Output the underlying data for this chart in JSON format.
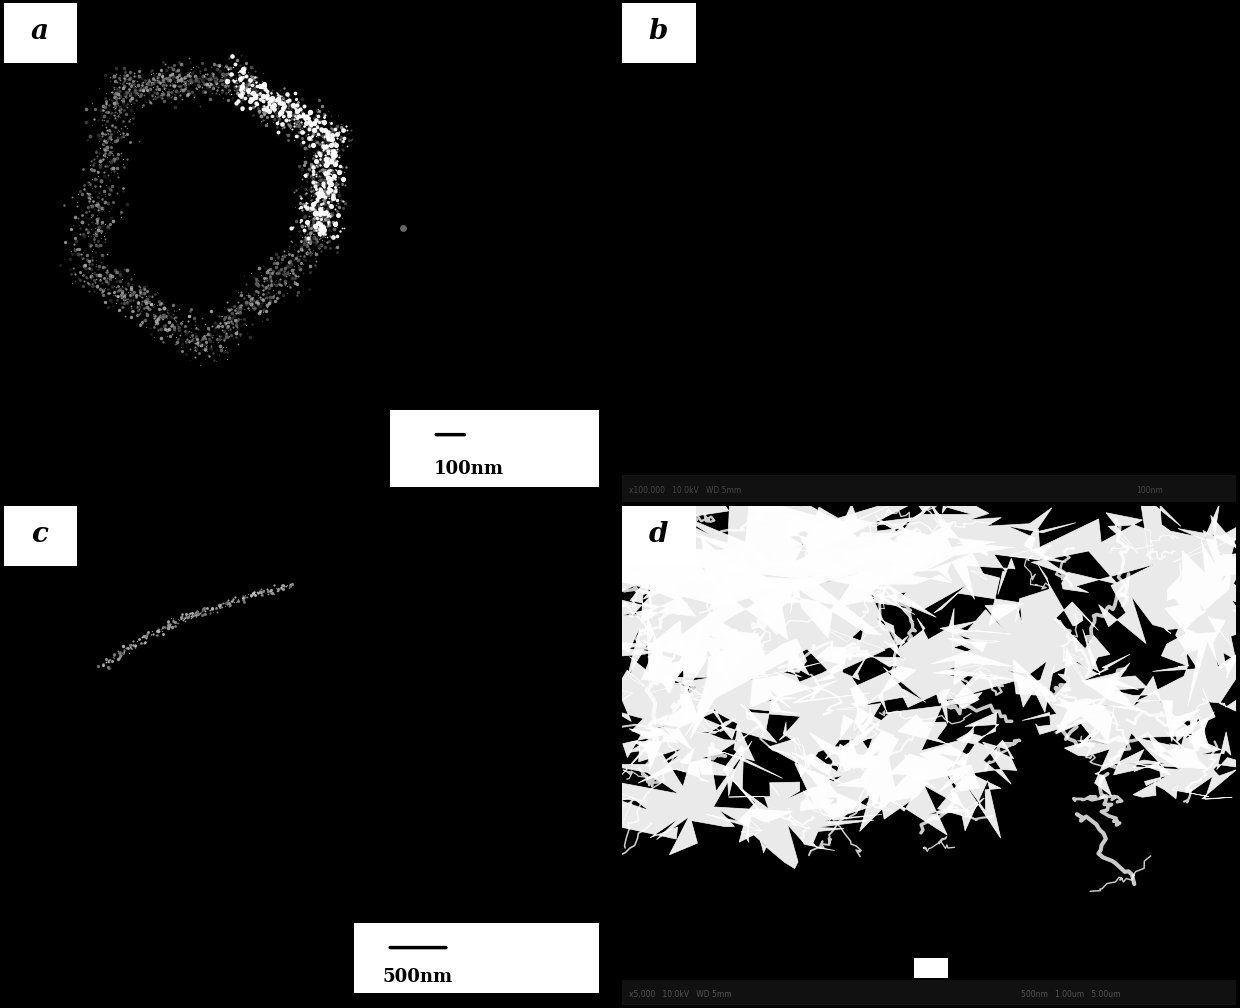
{
  "panels": [
    "a",
    "b",
    "c",
    "d"
  ],
  "background_color": "#000000",
  "label_bg_color": "#ffffff",
  "label_text_color": "#000000",
  "label_fontsize": 20,
  "label_fontweight": "bold",
  "scalebar_a_text": "100nm",
  "scalebar_c_text": "500nm",
  "figure_width": 12.4,
  "figure_height": 10.08
}
